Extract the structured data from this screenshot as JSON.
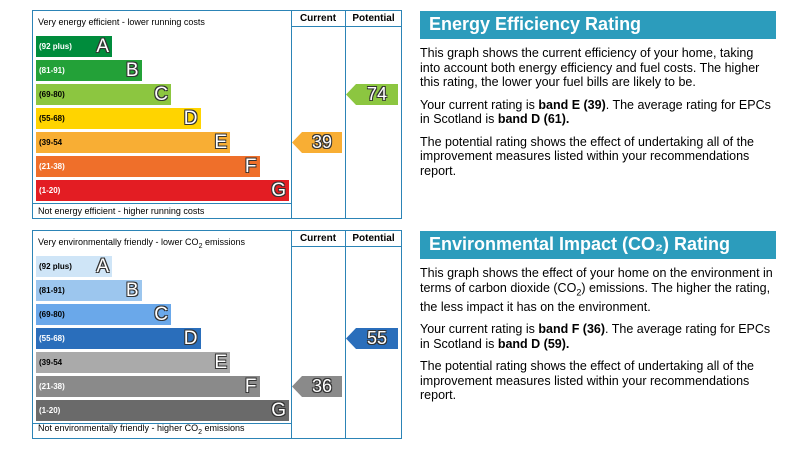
{
  "energy": {
    "graph": {
      "top_caption": "Very energy efficient - lower running costs",
      "bottom_caption": "Not energy efficient - higher running costs",
      "current_header": "Current",
      "potential_header": "Potential",
      "bands": [
        {
          "range": "(92 plus)",
          "letter": "A",
          "color": "#008c3c"
        },
        {
          "range": "(81-91)",
          "letter": "B",
          "color": "#23a138"
        },
        {
          "range": "(69-80)",
          "letter": "C",
          "color": "#8cc640"
        },
        {
          "range": "(55-68)",
          "letter": "D",
          "color": "#ffd400"
        },
        {
          "range": "(39-54",
          "letter": "E",
          "color": "#f8ae34"
        },
        {
          "range": "(21-38)",
          "letter": "F",
          "color": "#ef6f2a"
        },
        {
          "range": "(1-20)",
          "letter": "G",
          "color": "#e31d23"
        }
      ],
      "current": {
        "value": "39",
        "band_index": 4,
        "color": "#f8ae34"
      },
      "potential": {
        "value": "74",
        "band_index": 2,
        "color": "#8cc640"
      }
    },
    "panel": {
      "title": "Energy Efficiency Rating",
      "intro": "This graph shows the current efficiency of your home, taking into account both energy efficiency and fuel costs. The higher this rating, the lower your fuel bills are likely to be.",
      "rating_prefix": "Your current rating is ",
      "rating_band": "band E (39)",
      "rating_mid": ". The average rating for EPCs in Scotland is ",
      "average_band": "band D (61).",
      "potential_text": "The potential rating shows the effect of undertaking all of the improvement measures listed within your recommendations report."
    }
  },
  "environment": {
    "graph": {
      "top_caption_pre": "Very environmentally friendly - lower CO",
      "top_caption_sub": "2",
      "top_caption_post": " emissions",
      "bottom_caption_pre": "Not environmentally friendly - higher CO",
      "bottom_caption_sub": "2",
      "bottom_caption_post": " emissions",
      "current_header": "Current",
      "potential_header": "Potential",
      "bands": [
        {
          "range": "(92 plus)",
          "letter": "A",
          "color": "#cfe5f7"
        },
        {
          "range": "(81-91)",
          "letter": "B",
          "color": "#9cc6ee"
        },
        {
          "range": "(69-80)",
          "letter": "C",
          "color": "#6aa8ea"
        },
        {
          "range": "(55-68)",
          "letter": "D",
          "color": "#2a6ebb"
        },
        {
          "range": "(39-54",
          "letter": "E",
          "color": "#aaaaaa"
        },
        {
          "range": "(21-38)",
          "letter": "F",
          "color": "#8a8a8a"
        },
        {
          "range": "(1-20)",
          "letter": "G",
          "color": "#6a6a6a"
        }
      ],
      "current": {
        "value": "36",
        "band_index": 5,
        "color": "#8a8a8a"
      },
      "potential": {
        "value": "55",
        "band_index": 3,
        "color": "#2a6ebb"
      }
    },
    "panel": {
      "title": "Environmental Impact (CO₂) Rating",
      "intro_pre": "This graph shows the effect of your home on the environment in terms of carbon dioxide (CO",
      "intro_sub": "2",
      "intro_post": ") emissions. The higher the rating, the less impact it has on the environment.",
      "rating_prefix": "Your current rating is ",
      "rating_band": "band F (36)",
      "rating_mid": ". The average rating for EPCs in Scotland is ",
      "average_band": "band D (59).",
      "potential_text": "The potential rating shows the effect of undertaking all of the improvement measures listed within your recommendations report."
    }
  }
}
